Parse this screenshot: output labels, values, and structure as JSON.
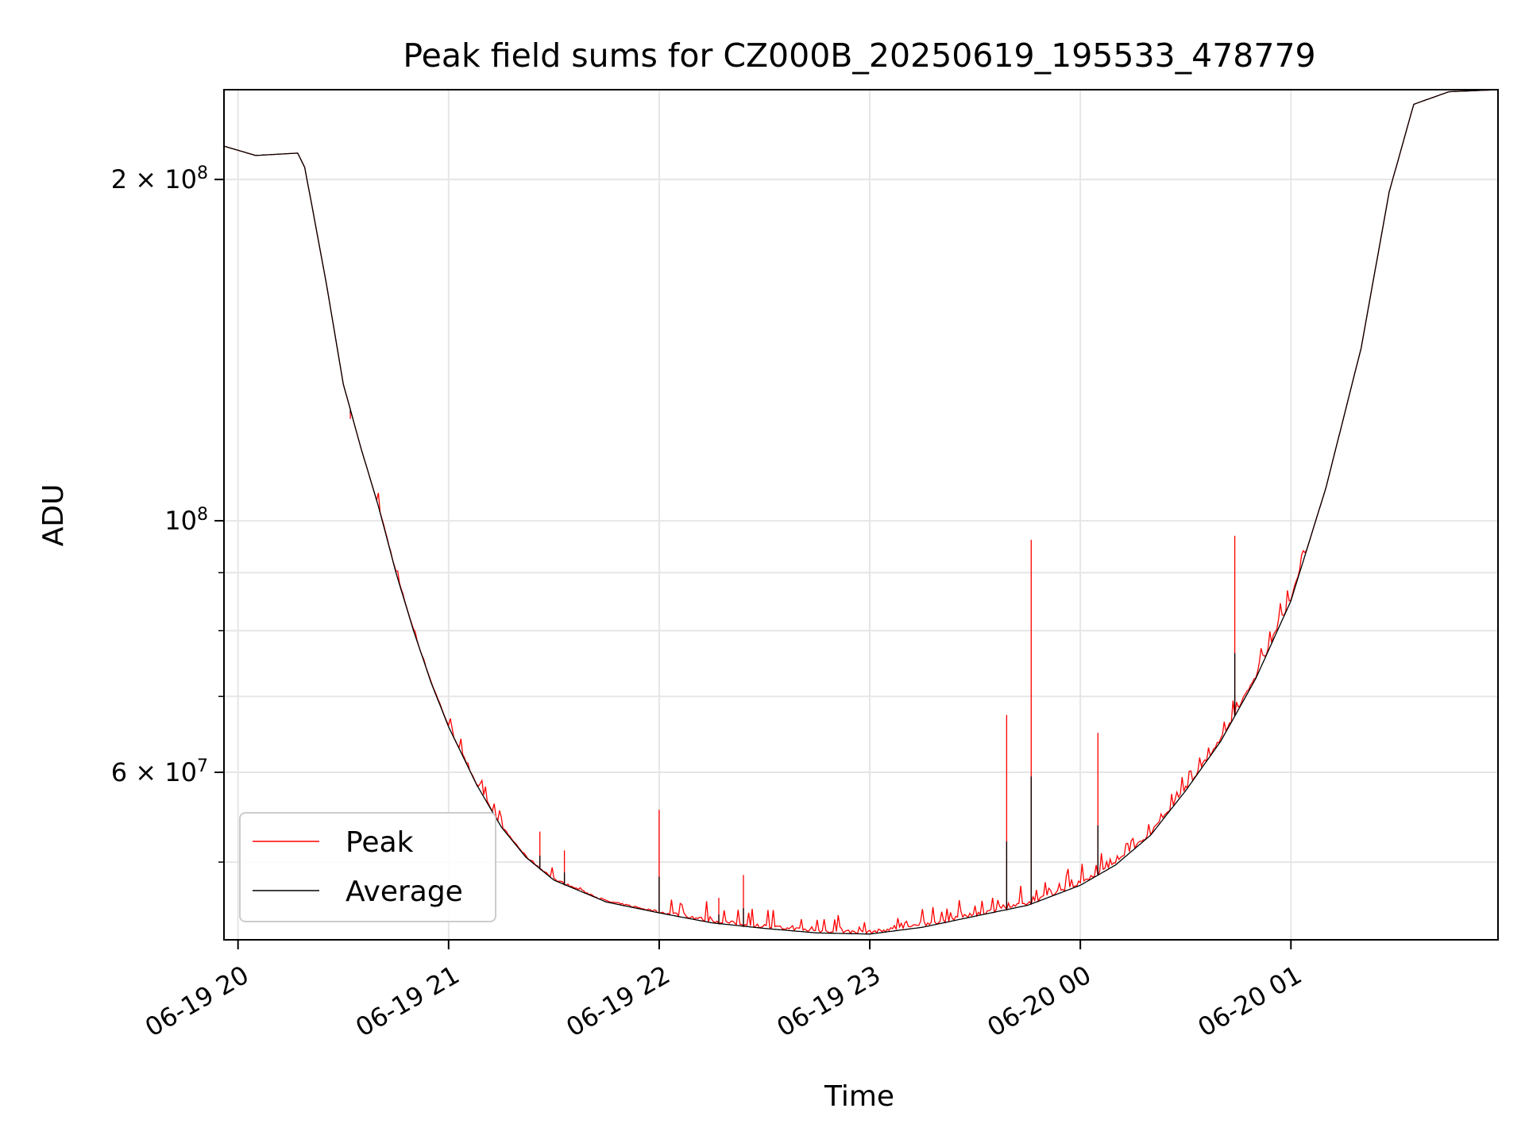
{
  "chart_data": {
    "type": "line",
    "title": "Peak field sums for CZ000B_20250619_195533_478779",
    "xlabel": "Time",
    "ylabel": "ADU",
    "yscale": "log",
    "xlim": [
      "2025-06-19 19:56",
      "2025-06-20 01:59"
    ],
    "ylim": [
      42700000,
      240000000
    ],
    "grid": true,
    "legend_position": "lower-left",
    "x_ticks": [
      {
        "t": "2025-06-19 20:00",
        "label": "06-19 20"
      },
      {
        "t": "2025-06-19 21:00",
        "label": "06-19 21"
      },
      {
        "t": "2025-06-19 22:00",
        "label": "06-19 22"
      },
      {
        "t": "2025-06-19 23:00",
        "label": "06-19 23"
      },
      {
        "t": "2025-06-20 00:00",
        "label": "06-20 00"
      },
      {
        "t": "2025-06-20 01:00",
        "label": "06-20 01"
      }
    ],
    "y_ticks": [
      {
        "value": 200000000,
        "label": "2 × 10^8",
        "mantissa": "2 × 10",
        "exp": "8"
      },
      {
        "value": 100000000,
        "label": "10^8",
        "mantissa": "10",
        "exp": "8"
      },
      {
        "value": 60000000,
        "label": "6 × 10^7",
        "mantissa": "6 × 10",
        "exp": "7"
      }
    ],
    "y_minor_ticks": [
      50000000,
      70000000,
      80000000,
      90000000
    ],
    "series": [
      {
        "name": "Peak",
        "color": "#ff0000",
        "base": "Average",
        "spikes": [
          {
            "t": "2025-06-19 20:32",
            "value": 123000000
          },
          {
            "t": "2025-06-19 21:26",
            "value": 53200000
          },
          {
            "t": "2025-06-19 21:33",
            "value": 51200000
          },
          {
            "t": "2025-06-19 22:00",
            "value": 55600000
          },
          {
            "t": "2025-06-19 22:17",
            "value": 46500000
          },
          {
            "t": "2025-06-19 22:24",
            "value": 48700000
          },
          {
            "t": "2025-06-19 23:39",
            "value": 67400000
          },
          {
            "t": "2025-06-19 23:46",
            "value": 96200000
          },
          {
            "t": "2025-06-20 00:05",
            "value": 65000000
          },
          {
            "t": "2025-06-20 00:44",
            "value": 97000000
          }
        ]
      },
      {
        "name": "Average",
        "color": "#000000",
        "points": [
          {
            "t": "2025-06-19 19:56",
            "value": 214000000
          },
          {
            "t": "2025-06-19 20:05",
            "value": 210000000
          },
          {
            "t": "2025-06-19 20:17",
            "value": 211000000
          },
          {
            "t": "2025-06-19 20:19",
            "value": 205000000
          },
          {
            "t": "2025-06-19 20:21",
            "value": 190000000
          },
          {
            "t": "2025-06-19 20:25",
            "value": 163000000
          },
          {
            "t": "2025-06-19 20:30",
            "value": 132000000
          },
          {
            "t": "2025-06-19 20:35",
            "value": 116000000
          },
          {
            "t": "2025-06-19 20:40",
            "value": 103000000
          },
          {
            "t": "2025-06-19 20:45",
            "value": 90000000
          },
          {
            "t": "2025-06-19 20:50",
            "value": 80000000
          },
          {
            "t": "2025-06-19 20:55",
            "value": 72000000
          },
          {
            "t": "2025-06-19 21:00",
            "value": 65800000
          },
          {
            "t": "2025-06-19 21:08",
            "value": 58500000
          },
          {
            "t": "2025-06-19 21:15",
            "value": 53700000
          },
          {
            "t": "2025-06-19 21:22",
            "value": 50500000
          },
          {
            "t": "2025-06-19 21:30",
            "value": 48200000
          },
          {
            "t": "2025-06-19 21:45",
            "value": 46100000
          },
          {
            "t": "2025-06-19 22:00",
            "value": 45100000
          },
          {
            "t": "2025-06-19 22:15",
            "value": 44200000
          },
          {
            "t": "2025-06-19 22:30",
            "value": 43700000
          },
          {
            "t": "2025-06-19 22:45",
            "value": 43300000
          },
          {
            "t": "2025-06-19 23:00",
            "value": 43200000
          },
          {
            "t": "2025-06-19 23:15",
            "value": 43800000
          },
          {
            "t": "2025-06-19 23:30",
            "value": 44800000
          },
          {
            "t": "2025-06-19 23:45",
            "value": 45800000
          },
          {
            "t": "2025-06-20 00:00",
            "value": 47700000
          },
          {
            "t": "2025-06-20 00:10",
            "value": 49700000
          },
          {
            "t": "2025-06-20 00:20",
            "value": 52800000
          },
          {
            "t": "2025-06-20 00:30",
            "value": 57800000
          },
          {
            "t": "2025-06-20 00:40",
            "value": 63900000
          },
          {
            "t": "2025-06-20 00:50",
            "value": 72600000
          },
          {
            "t": "2025-06-20 01:00",
            "value": 85000000
          },
          {
            "t": "2025-06-20 01:10",
            "value": 107000000
          },
          {
            "t": "2025-06-20 01:20",
            "value": 142000000
          },
          {
            "t": "2025-06-20 01:28",
            "value": 195000000
          },
          {
            "t": "2025-06-20 01:35",
            "value": 233000000
          },
          {
            "t": "2025-06-20 01:45",
            "value": 239000000
          },
          {
            "t": "2025-06-20 01:59",
            "value": 240000000
          }
        ]
      }
    ]
  }
}
